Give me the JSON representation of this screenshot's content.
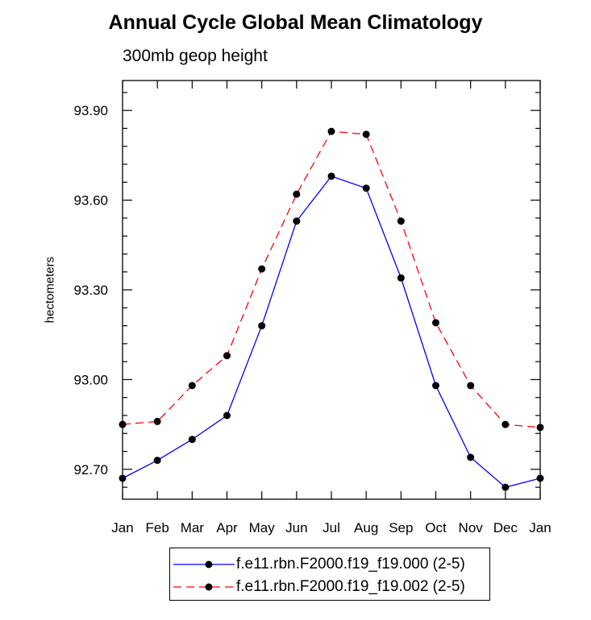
{
  "title": "Annual Cycle Global Mean Climatology",
  "subtitle": "300mb geop height",
  "chart_data": {
    "type": "line",
    "title": "Annual Cycle Global Mean Climatology",
    "subtitle": "300mb geop height",
    "xlabel": "",
    "ylabel": "hectometers",
    "categories": [
      "Jan",
      "Feb",
      "Mar",
      "Apr",
      "May",
      "Jun",
      "Jul",
      "Aug",
      "Sep",
      "Oct",
      "Nov",
      "Dec",
      "Jan"
    ],
    "ylim": [
      92.6,
      94.0
    ],
    "yticks": [
      "92.70",
      "93.00",
      "93.30",
      "93.60",
      "93.90"
    ],
    "grid": false,
    "legend": "bottom-center",
    "series": [
      {
        "name": "f.e11.rbn.F2000.f19_f19.000 (2-5)",
        "color": "#0000ff",
        "dash": "solid",
        "marker": "filled-circle",
        "values": [
          92.67,
          92.73,
          92.8,
          92.88,
          93.18,
          93.53,
          93.68,
          93.64,
          93.34,
          92.98,
          92.74,
          92.64,
          92.67
        ]
      },
      {
        "name": "f.e11.rbn.F2000.f19_f19.002 (2-5)",
        "color": "#ff0000",
        "dash": "dashed",
        "marker": "filled-circle",
        "values": [
          92.85,
          92.86,
          92.98,
          93.08,
          93.37,
          93.62,
          93.83,
          93.82,
          93.53,
          93.19,
          92.98,
          92.85,
          92.84
        ]
      }
    ]
  }
}
